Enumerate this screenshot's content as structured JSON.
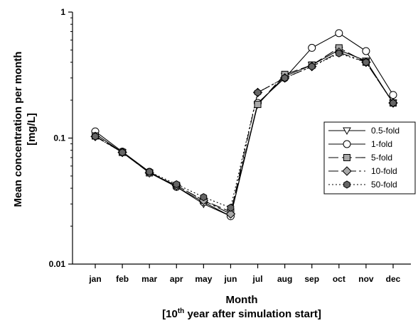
{
  "chart_data": {
    "type": "line",
    "yscale": "log",
    "ylim": [
      0.01,
      1
    ],
    "yticks": [
      {
        "value": 0.01,
        "label": "0.01"
      },
      {
        "value": 0.1,
        "label": "0.1"
      },
      {
        "value": 1,
        "label": "1"
      }
    ],
    "categories": [
      "jan",
      "feb",
      "mar",
      "apr",
      "may",
      "jun",
      "jul",
      "aug",
      "sep",
      "oct",
      "nov",
      "dec"
    ],
    "xlabel": "Month",
    "xlabel_line2": [
      "[10",
      "th",
      " year after simulation start]"
    ],
    "ylabel": [
      "Mean concentration per month",
      "[mg/L]"
    ],
    "grid": false,
    "legend_position": "right",
    "series": [
      {
        "name": "0.5-fold",
        "marker": "triangle-down",
        "dash": "solid",
        "markerFill": "#ffffff",
        "values": [
          0.108,
          0.077,
          0.053,
          0.041,
          0.03,
          0.024,
          0.185,
          0.31,
          0.38,
          0.5,
          0.41,
          0.19
        ]
      },
      {
        "name": "1-fold",
        "marker": "circle",
        "dash": "solid",
        "markerFill": "#ffffff",
        "values": [
          0.113,
          0.078,
          0.054,
          0.041,
          0.031,
          0.024,
          0.19,
          0.3,
          0.52,
          0.68,
          0.49,
          0.22
        ]
      },
      {
        "name": "5-fold",
        "marker": "square",
        "dash": "longdash",
        "markerFill": "#a8a8a8",
        "values": [
          0.104,
          0.077,
          0.053,
          0.042,
          0.032,
          0.026,
          0.185,
          0.32,
          0.38,
          0.52,
          0.4,
          0.19
        ]
      },
      {
        "name": "10-fold",
        "marker": "diamond",
        "dash": "dashdot",
        "markerFill": "#a8a8a8",
        "values": [
          0.103,
          0.077,
          0.053,
          0.042,
          0.032,
          0.025,
          0.23,
          0.3,
          0.37,
          0.48,
          0.4,
          0.19
        ]
      },
      {
        "name": "50-fold",
        "marker": "hexagon",
        "dash": "dotted",
        "markerFill": "#666666",
        "values": [
          0.103,
          0.077,
          0.054,
          0.043,
          0.034,
          0.028,
          0.23,
          0.3,
          0.37,
          0.47,
          0.4,
          0.19
        ]
      }
    ]
  }
}
